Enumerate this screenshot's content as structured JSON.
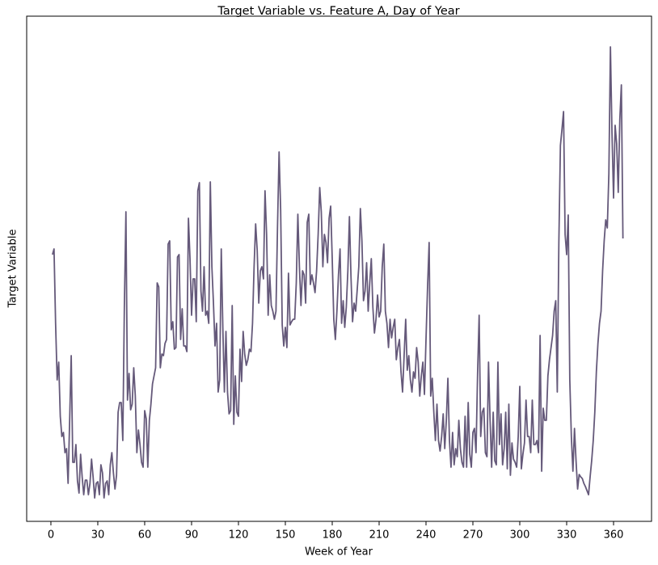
{
  "chart_data": {
    "type": "line",
    "title": "Target Variable vs. Feature A, Day of Year",
    "x_label": "Week of Year",
    "y_label": "Target Variable",
    "color": "#65597a",
    "xlim": [
      -15.5,
      384.3
    ],
    "ylim": [
      0,
      625
    ],
    "xticks": [
      0,
      30,
      60,
      90,
      120,
      150,
      180,
      210,
      240,
      270,
      300,
      330,
      360
    ],
    "x": [
      1,
      2,
      3,
      4,
      5,
      6,
      7,
      8,
      9,
      10,
      11,
      12,
      13,
      14,
      15,
      16,
      17,
      18,
      19,
      20,
      21,
      22,
      23,
      24,
      25,
      26,
      27,
      28,
      29,
      30,
      31,
      32,
      33,
      34,
      35,
      36,
      37,
      38,
      39,
      40,
      41,
      42,
      43,
      44,
      45,
      46,
      47,
      48,
      49,
      50,
      51,
      52,
      53,
      54,
      55,
      56,
      57,
      58,
      59,
      60,
      61,
      62,
      63,
      64,
      65,
      66,
      67,
      68,
      69,
      70,
      71,
      72,
      73,
      74,
      75,
      76,
      77,
      78,
      79,
      80,
      81,
      82,
      83,
      84,
      85,
      86,
      87,
      88,
      89,
      90,
      91,
      92,
      93,
      94,
      95,
      96,
      97,
      98,
      99,
      100,
      101,
      102,
      103,
      104,
      105,
      106,
      107,
      108,
      109,
      110,
      111,
      112,
      113,
      114,
      115,
      116,
      117,
      118,
      119,
      120,
      121,
      122,
      123,
      124,
      125,
      126,
      127,
      128,
      129,
      130,
      131,
      132,
      133,
      134,
      135,
      136,
      137,
      138,
      139,
      140,
      141,
      142,
      143,
      144,
      145,
      146,
      147,
      148,
      149,
      150,
      151,
      152,
      153,
      154,
      155,
      156,
      157,
      158,
      159,
      160,
      161,
      162,
      163,
      164,
      165,
      166,
      167,
      168,
      169,
      170,
      171,
      172,
      173,
      174,
      175,
      176,
      177,
      178,
      179,
      180,
      181,
      182,
      183,
      184,
      185,
      186,
      187,
      188,
      189,
      190,
      191,
      192,
      193,
      194,
      195,
      196,
      197,
      198,
      199,
      200,
      201,
      202,
      203,
      204,
      205,
      206,
      207,
      208,
      209,
      210,
      211,
      212,
      213,
      214,
      215,
      216,
      217,
      218,
      219,
      220,
      221,
      222,
      223,
      224,
      225,
      226,
      227,
      228,
      229,
      230,
      231,
      232,
      233,
      234,
      235,
      236,
      237,
      238,
      239,
      240,
      241,
      242,
      243,
      244,
      245,
      246,
      247,
      248,
      249,
      250,
      251,
      252,
      253,
      254,
      255,
      256,
      257,
      258,
      259,
      260,
      261,
      262,
      263,
      264,
      265,
      266,
      267,
      268,
      269,
      270,
      271,
      272,
      273,
      274,
      275,
      276,
      277,
      278,
      279,
      280,
      281,
      282,
      283,
      284,
      285,
      286,
      287,
      288,
      289,
      290,
      291,
      292,
      293,
      294,
      295,
      296,
      297,
      298,
      299,
      300,
      301,
      302,
      303,
      304,
      305,
      306,
      307,
      308,
      309,
      310,
      311,
      312,
      313,
      314,
      315,
      316,
      317,
      318,
      319,
      320,
      321,
      322,
      323,
      324,
      325,
      326,
      327,
      328,
      329,
      330,
      331,
      332,
      333,
      334,
      335,
      336,
      337,
      338,
      339,
      340,
      341,
      342,
      343,
      344,
      345,
      346,
      347,
      348,
      349,
      350,
      351,
      352,
      353,
      354,
      355,
      356,
      357,
      358,
      359,
      360,
      361,
      362,
      363,
      364,
      365,
      366
    ],
    "values": [
      330,
      337,
      245,
      175,
      197,
      130,
      105,
      110,
      85,
      90,
      47,
      125,
      205,
      73,
      73,
      95,
      50,
      35,
      83,
      55,
      33,
      51,
      51,
      33,
      47,
      77,
      55,
      29,
      47,
      49,
      33,
      70,
      60,
      29,
      47,
      50,
      33,
      70,
      85,
      60,
      40,
      57,
      135,
      147,
      147,
      100,
      265,
      383,
      150,
      183,
      138,
      145,
      190,
      155,
      85,
      113,
      95,
      73,
      67,
      137,
      127,
      67,
      125,
      145,
      170,
      180,
      190,
      295,
      290,
      190,
      207,
      205,
      220,
      225,
      343,
      347,
      237,
      247,
      213,
      215,
      327,
      330,
      225,
      263,
      217,
      217,
      210,
      375,
      325,
      255,
      300,
      300,
      247,
      409,
      419,
      285,
      260,
      315,
      255,
      260,
      245,
      420,
      315,
      270,
      217,
      245,
      160,
      175,
      337,
      240,
      160,
      235,
      160,
      133,
      137,
      267,
      120,
      180,
      135,
      130,
      213,
      173,
      235,
      207,
      193,
      200,
      213,
      210,
      245,
      315,
      368,
      335,
      270,
      310,
      315,
      300,
      409,
      355,
      255,
      305,
      267,
      260,
      250,
      260,
      365,
      457,
      385,
      243,
      217,
      240,
      215,
      307,
      243,
      247,
      250,
      250,
      295,
      380,
      315,
      267,
      310,
      305,
      270,
      370,
      380,
      293,
      305,
      295,
      283,
      310,
      355,
      413,
      383,
      315,
      355,
      345,
      320,
      375,
      390,
      325,
      250,
      225,
      260,
      305,
      337,
      245,
      273,
      240,
      265,
      310,
      377,
      303,
      247,
      270,
      260,
      287,
      315,
      387,
      347,
      273,
      285,
      320,
      260,
      295,
      325,
      265,
      233,
      250,
      280,
      253,
      260,
      315,
      343,
      260,
      245,
      215,
      250,
      227,
      240,
      250,
      200,
      215,
      225,
      185,
      160,
      205,
      250,
      187,
      205,
      175,
      160,
      185,
      177,
      215,
      197,
      155,
      180,
      197,
      157,
      225,
      290,
      345,
      155,
      177,
      135,
      100,
      145,
      100,
      87,
      105,
      133,
      90,
      125,
      177,
      100,
      67,
      110,
      70,
      90,
      80,
      125,
      90,
      73,
      67,
      130,
      67,
      147,
      83,
      67,
      110,
      115,
      85,
      183,
      255,
      105,
      135,
      140,
      85,
      80,
      197,
      125,
      67,
      135,
      75,
      70,
      197,
      95,
      133,
      70,
      90,
      135,
      65,
      145,
      57,
      97,
      77,
      73,
      67,
      105,
      167,
      65,
      83,
      97,
      150,
      105,
      105,
      85,
      150,
      95,
      95,
      100,
      85,
      230,
      62,
      140,
      125,
      125,
      180,
      200,
      215,
      230,
      260,
      273,
      160,
      345,
      465,
      485,
      507,
      355,
      330,
      379,
      175,
      105,
      62,
      115,
      75,
      40,
      58,
      55,
      53,
      47,
      43,
      38,
      33,
      55,
      75,
      100,
      135,
      185,
      220,
      245,
      260,
      310,
      347,
      373,
      363,
      430,
      587,
      480,
      400,
      490,
      467,
      407,
      497,
      540,
      350
    ]
  }
}
